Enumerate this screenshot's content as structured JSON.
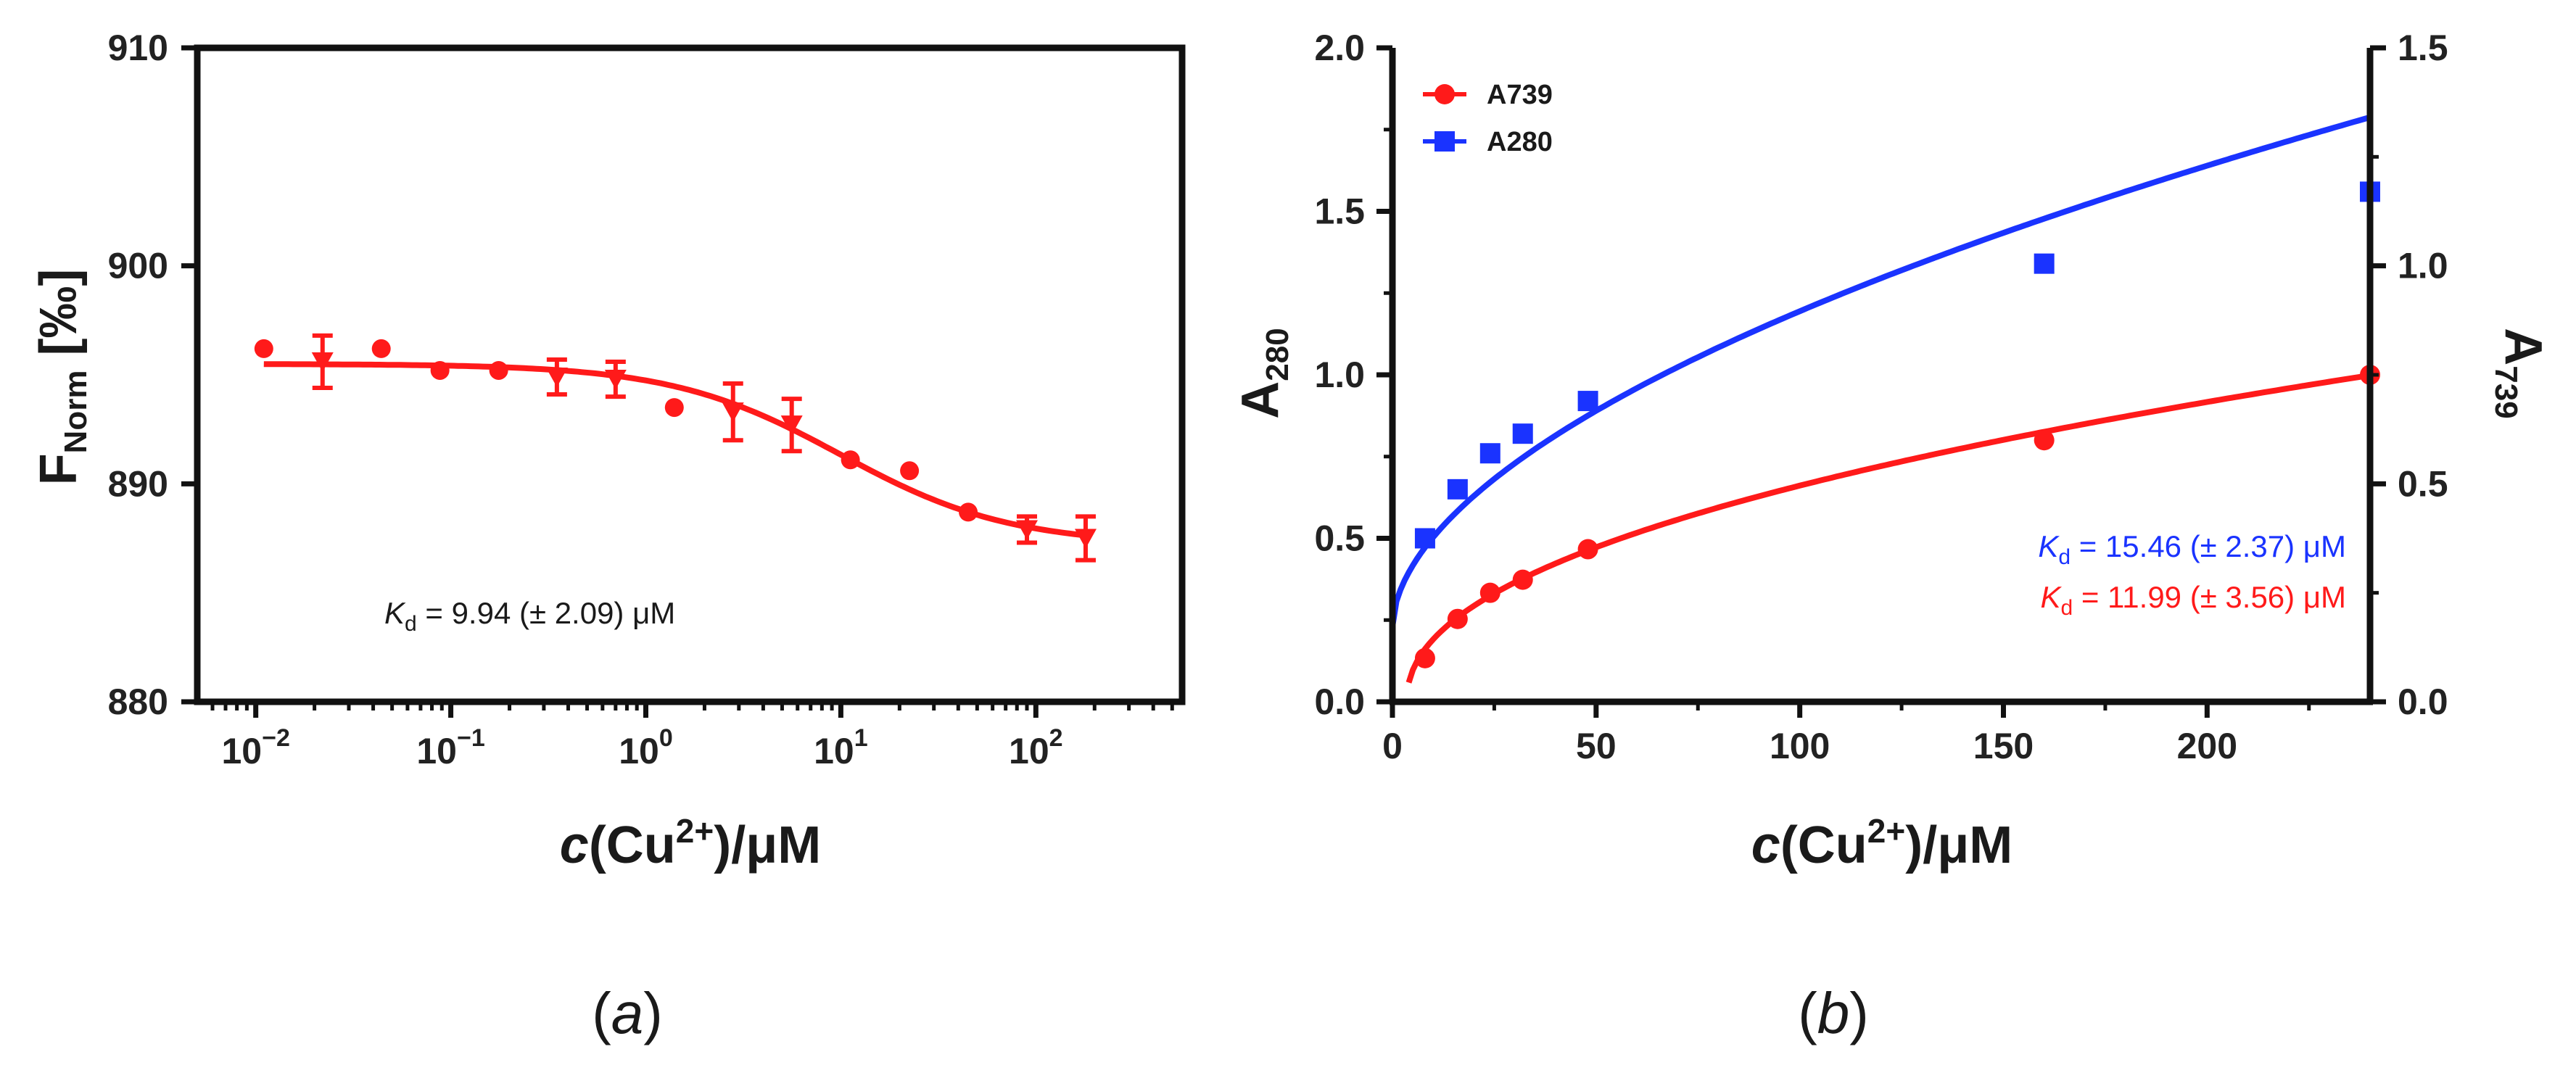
{
  "chart_data": [
    {
      "type": "scatter",
      "panel_label": "(a)",
      "xscale": "log",
      "xlim_exp": [
        -2.3,
        2.75
      ],
      "ylim": [
        880,
        910
      ],
      "xticks_exp": [
        -2,
        -1,
        0,
        1,
        2
      ],
      "yticks": [
        880,
        890,
        900,
        910
      ],
      "ylabel": {
        "main": "F",
        "sub": "Norm",
        "rest": " [‰]"
      },
      "xlabel": {
        "c": "c",
        "mid": "(Cu",
        "sup": "2+",
        "rest": ")/μM"
      },
      "series": [
        {
          "name": "F_Norm",
          "color": "#ff1a1a",
          "x": [
            0.011,
            0.022,
            0.044,
            0.088,
            0.176,
            0.35,
            0.7,
            1.4,
            2.8,
            5.6,
            11.2,
            22.5,
            45,
            90,
            180
          ],
          "y": [
            896.2,
            895.6,
            896.2,
            895.2,
            895.2,
            894.9,
            894.8,
            893.5,
            893.3,
            892.7,
            891.1,
            890.6,
            888.7,
            887.9,
            887.5
          ],
          "err": [
            0,
            1.2,
            0,
            0,
            0,
            0.8,
            0.8,
            0,
            1.3,
            1.2,
            0,
            0,
            0,
            0.6,
            1.0
          ]
        }
      ],
      "fit": {
        "top": 895.5,
        "bottom": 887.2,
        "kd": 9.94
      },
      "annotation": {
        "k": "K",
        "sub": "d",
        "text": " = 9.94 (± 2.09) μM"
      }
    },
    {
      "type": "scatter",
      "panel_label": "(b)",
      "xlim": [
        0,
        240
      ],
      "xticks": [
        0,
        50,
        100,
        150,
        200
      ],
      "ylim_left": [
        0,
        2
      ],
      "yticks_left": [
        "0.0",
        "0.5",
        "1.0",
        "1.5",
        "2.0"
      ],
      "ylim_right": [
        0,
        1.5
      ],
      "yticks_right": [
        "0.0",
        "0.5",
        "1.0",
        "1.5"
      ],
      "ylabel_left": {
        "main": "A",
        "sub": "280",
        "color": "#0a0a8c"
      },
      "ylabel_right": {
        "main": "A",
        "sub": "739",
        "color": "#ff1a1a"
      },
      "xlabel": {
        "c": "c",
        "mid": "(Cu",
        "sup": "2+",
        "rest": ")/μM"
      },
      "legend": [
        {
          "label": "A739",
          "color": "#ff1a1a",
          "marker": "circle"
        },
        {
          "label": "A280",
          "color": "#1a33ff",
          "marker": "square"
        }
      ],
      "series": [
        {
          "name": "A739",
          "axis": "right",
          "color": "#ff1a1a",
          "marker": "circle",
          "x": [
            8,
            16,
            24,
            32,
            48,
            160,
            240
          ],
          "y": [
            0.1,
            0.19,
            0.25,
            0.28,
            0.35,
            0.6,
            0.75
          ]
        },
        {
          "name": "A280",
          "axis": "left",
          "color": "#1a33ff",
          "marker": "square",
          "x": [
            8,
            16,
            24,
            32,
            48,
            160,
            240
          ],
          "y": [
            0.5,
            0.65,
            0.76,
            0.82,
            0.92,
            1.34,
            1.56
          ]
        }
      ],
      "annotations": [
        {
          "k": "K",
          "sub": "d",
          "text": " = 15.46 (± 2.37) μM",
          "color": "#1a33ff"
        },
        {
          "k": "K",
          "sub": "d",
          "text": " = 11.99 (± 3.56) μM",
          "color": "#ff1a1a"
        }
      ]
    }
  ]
}
